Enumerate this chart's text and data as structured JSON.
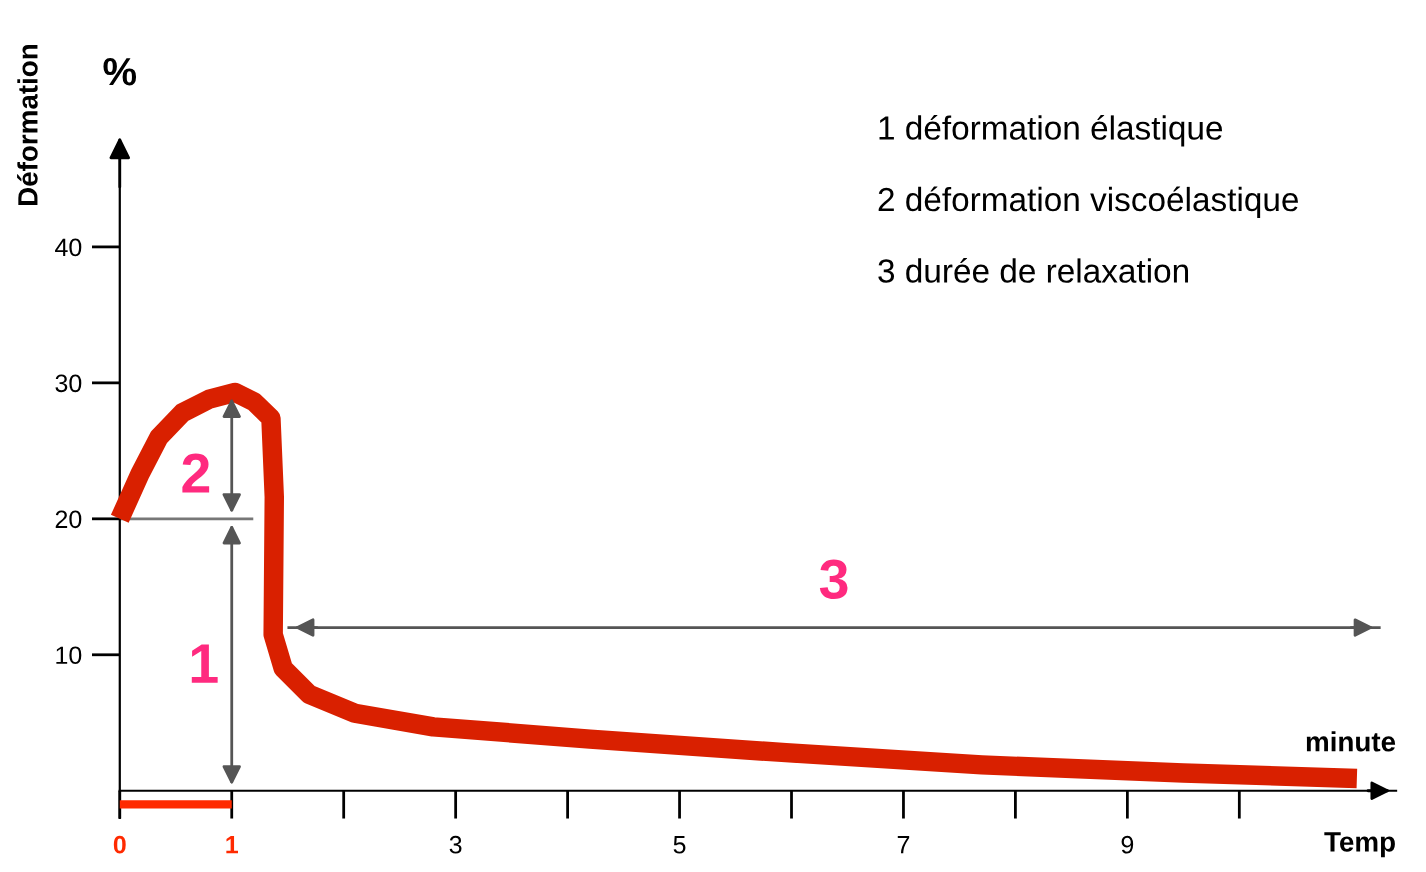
{
  "chart_data": {
    "type": "line",
    "ylabel": "Déformation",
    "xlabel": "Temp",
    "x": [
      0,
      0.18,
      0.35,
      0.56,
      0.8,
      1.03,
      1.2,
      1.35,
      1.38,
      1.37,
      1.46,
      1.69,
      2.1,
      2.8,
      4.2,
      5.95,
      7.7,
      9.5,
      11.05
    ],
    "series": [
      {
        "color": "#d92000",
        "values": [
          20,
          23.3,
          26,
          27.8,
          28.8,
          29.3,
          28.6,
          27.4,
          21.6,
          11.5,
          9,
          7.1,
          5.7,
          4.7,
          3.8,
          2.8,
          1.9,
          1.3,
          0.9
        ]
      },
      {
        "color": "#ff2a00",
        "x": [
          0,
          1
        ],
        "values": [
          -1,
          -1
        ]
      }
    ],
    "xlim": [
      0,
      11.4
    ],
    "ylim": [
      -2,
      47
    ],
    "xticks": [
      0,
      1,
      {
        "value": 2,
        "label": null
      },
      3,
      {
        "value": 4,
        "label": null
      },
      5,
      {
        "value": 6,
        "label": null
      },
      7,
      {
        "value": 8,
        "label": null
      },
      9,
      {
        "value": 10,
        "label": null
      }
    ],
    "yticks": [
      10,
      20,
      30,
      40
    ],
    "ref_lines": [
      {
        "axis": "y",
        "value": 20,
        "label": null,
        "color": "#777777"
      },
      {
        "axis": "y",
        "value": 12,
        "label": null,
        "color": "#555555"
      }
    ],
    "annotations": [
      "%",
      "minute",
      "1 déformation élastique",
      "2 déformation viscoélastique",
      "3 durée de relaxation",
      "1",
      "2",
      "3"
    ],
    "grid": false,
    "marker": "none",
    "line_style": "solid"
  }
}
